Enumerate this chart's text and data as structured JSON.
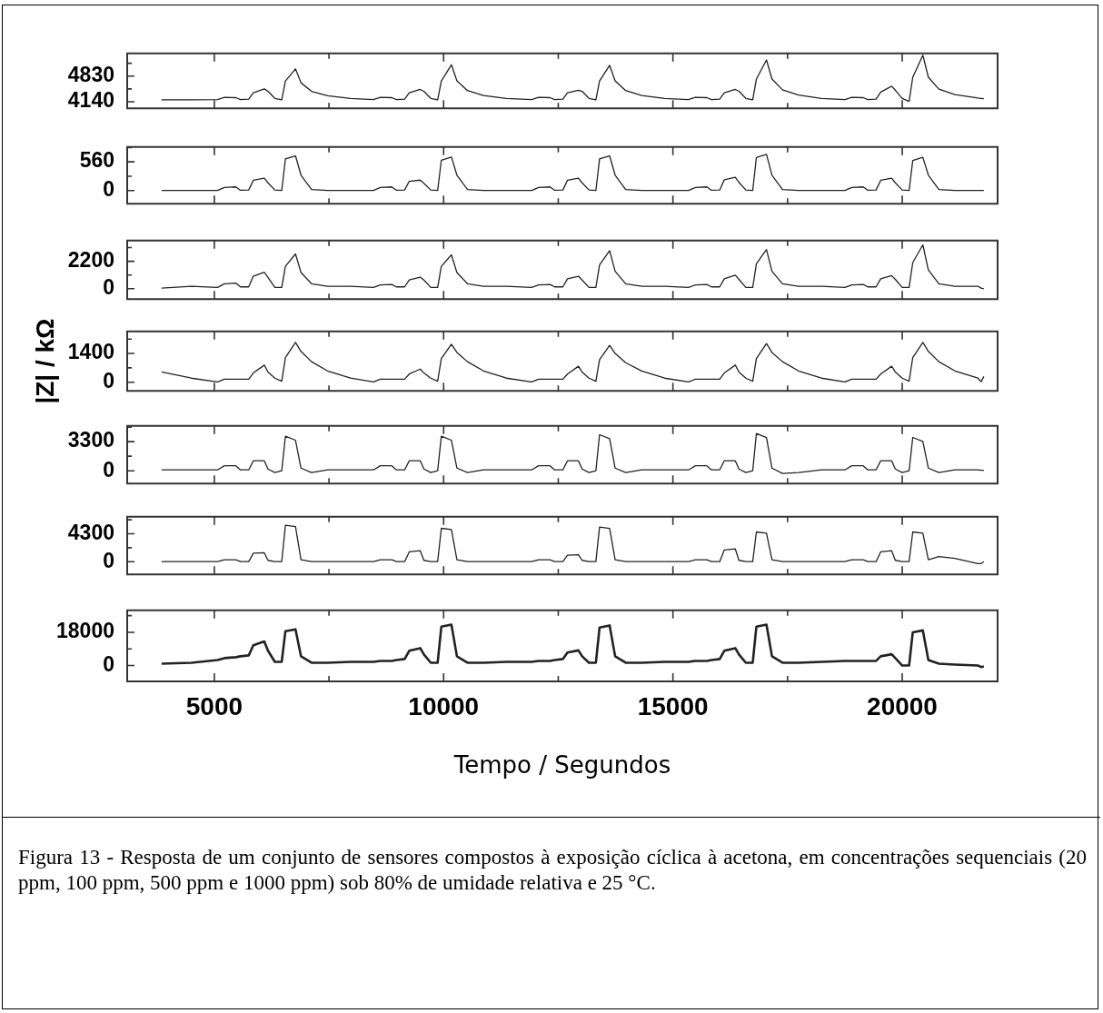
{
  "chart_data": [
    {
      "type": "line",
      "x": [
        3850,
        4500,
        5070,
        5220,
        5470,
        5570,
        5750,
        5850,
        6090,
        6170,
        6320,
        6470,
        6550,
        6770,
        6890,
        7120,
        7470,
        7970,
        8470,
        8620,
        8870,
        8970,
        9150,
        9250,
        9490,
        9570,
        9720,
        9870,
        9950,
        10170,
        10290,
        10520,
        10870,
        11370,
        11920,
        12070,
        12320,
        12420,
        12600,
        12700,
        12940,
        13020,
        13170,
        13320,
        13400,
        13620,
        13740,
        13970,
        14320,
        14820,
        15340,
        15490,
        15740,
        15840,
        16020,
        16120,
        16360,
        16440,
        16590,
        16740,
        16820,
        17040,
        17160,
        17390,
        17740,
        18240,
        18750,
        18900,
        19150,
        19250,
        19430,
        19530,
        19770,
        19850,
        20000,
        20150,
        20230,
        20450,
        20570,
        20800,
        21150,
        21650,
        21720,
        21780
      ],
      "xlim": [
        3100,
        22080
      ],
      "xticks": [
        5000,
        {
          "value": 7500,
          "label": null
        },
        10000,
        {
          "value": 12500,
          "label": null
        },
        15000,
        {
          "value": 17500,
          "label": null
        },
        20000
      ],
      "ylim": [
        3964,
        5440
      ],
      "yticks": [
        4140,
        {
          "value": 4485,
          "label": null
        },
        4830,
        {
          "value": 5175,
          "label": null
        }
      ],
      "tick_labels": "y",
      "series": [
        {
          "color": "#222222",
          "values": [
            4190,
            4190,
            4200,
            4260,
            4250,
            4200,
            4210,
            4380,
            4485,
            4420,
            4230,
            4190,
            4700,
            5023,
            4650,
            4420,
            4300,
            4230,
            4200,
            4260,
            4250,
            4200,
            4210,
            4380,
            4470,
            4420,
            4230,
            4190,
            4700,
            5135,
            4700,
            4440,
            4310,
            4230,
            4200,
            4260,
            4250,
            4200,
            4210,
            4380,
            4450,
            4420,
            4230,
            4190,
            4700,
            5119,
            4700,
            4440,
            4310,
            4230,
            4200,
            4260,
            4250,
            4200,
            4210,
            4380,
            4470,
            4420,
            4230,
            4190,
            4750,
            5263,
            4750,
            4460,
            4320,
            4230,
            4200,
            4260,
            4250,
            4200,
            4210,
            4400,
            4557,
            4450,
            4230,
            4150,
            4800,
            5392,
            4800,
            4480,
            4330,
            4240,
            4230,
            4220
          ]
        }
      ]
    },
    {
      "type": "line",
      "x": [
        3850,
        4500,
        5070,
        5220,
        5470,
        5570,
        5750,
        5850,
        6090,
        6170,
        6320,
        6470,
        6550,
        6770,
        6890,
        7120,
        7470,
        7970,
        8470,
        8620,
        8870,
        8970,
        9150,
        9250,
        9490,
        9570,
        9720,
        9870,
        9950,
        10170,
        10290,
        10520,
        10870,
        11370,
        11920,
        12070,
        12320,
        12420,
        12600,
        12700,
        12940,
        13020,
        13170,
        13320,
        13400,
        13620,
        13740,
        13970,
        14320,
        14820,
        15340,
        15490,
        15740,
        15840,
        16020,
        16120,
        16360,
        16440,
        16590,
        16740,
        16820,
        17040,
        17160,
        17390,
        17740,
        18240,
        18750,
        18900,
        19150,
        19250,
        19430,
        19530,
        19770,
        19850,
        20000,
        20150,
        20230,
        20450,
        20570,
        20800,
        21150,
        21650,
        21720,
        21780
      ],
      "xlim": [
        3100,
        22080
      ],
      "xticks": [
        5000,
        {
          "value": 7500,
          "label": null
        },
        10000,
        {
          "value": 12500,
          "label": null
        },
        15000,
        {
          "value": 17500,
          "label": null
        },
        20000
      ],
      "ylim": [
        -257,
        850
      ],
      "yticks": [
        0,
        {
          "value": 280,
          "label": null
        },
        560,
        {
          "value": 840,
          "label": null
        }
      ],
      "tick_labels": "y",
      "series": [
        {
          "color": "#222222",
          "values": [
            0,
            0,
            0,
            60,
            70,
            5,
            10,
            200,
            240,
            150,
            10,
            0,
            617,
            677,
            300,
            20,
            0,
            0,
            0,
            60,
            70,
            5,
            10,
            180,
            203,
            140,
            10,
            0,
            593,
            653,
            300,
            20,
            0,
            0,
            0,
            60,
            70,
            5,
            10,
            200,
            240,
            150,
            10,
            0,
            617,
            677,
            300,
            20,
            0,
            0,
            0,
            60,
            70,
            5,
            10,
            210,
            257,
            160,
            10,
            0,
            646,
            706,
            300,
            20,
            0,
            0,
            0,
            60,
            70,
            5,
            10,
            200,
            240,
            150,
            10,
            0,
            588,
            648,
            300,
            20,
            0,
            0,
            0,
            0
          ]
        }
      ]
    },
    {
      "type": "line",
      "x": [
        3850,
        4500,
        5070,
        5220,
        5470,
        5570,
        5750,
        5850,
        6090,
        6170,
        6320,
        6470,
        6550,
        6770,
        6890,
        7120,
        7470,
        7970,
        8470,
        8620,
        8870,
        8970,
        9150,
        9250,
        9490,
        9570,
        9720,
        9870,
        9950,
        10170,
        10290,
        10520,
        10870,
        11370,
        11920,
        12070,
        12320,
        12420,
        12600,
        12700,
        12940,
        13020,
        13170,
        13320,
        13400,
        13620,
        13740,
        13970,
        14320,
        14820,
        15340,
        15490,
        15740,
        15840,
        16020,
        16120,
        16360,
        16440,
        16590,
        16740,
        16820,
        17040,
        17160,
        17390,
        17740,
        18240,
        18750,
        18900,
        19150,
        19250,
        19430,
        19530,
        19770,
        19850,
        20000,
        20150,
        20230,
        20450,
        20570,
        20800,
        21150,
        21650,
        21720,
        21780
      ],
      "xlim": [
        3100,
        22080
      ],
      "xticks": [
        5000,
        {
          "value": 7500,
          "label": null
        },
        10000,
        {
          "value": 12500,
          "label": null
        },
        15000,
        {
          "value": 17500,
          "label": null
        },
        20000
      ],
      "ylim": [
        -831,
        3862
      ],
      "yticks": [
        0,
        {
          "value": 1100,
          "label": null
        },
        2200,
        {
          "value": 3300,
          "label": null
        }
      ],
      "tick_labels": "y",
      "series": [
        {
          "color": "#222222",
          "values": [
            50,
            200,
            100,
            400,
            450,
            150,
            150,
            1000,
            1320,
            900,
            100,
            100,
            1800,
            2790,
            1300,
            400,
            200,
            200,
            100,
            300,
            340,
            150,
            150,
            700,
            930,
            700,
            100,
            100,
            1800,
            2714,
            1300,
            400,
            200,
            200,
            100,
            300,
            340,
            150,
            150,
            800,
            1000,
            700,
            100,
            100,
            1900,
            3050,
            1400,
            400,
            200,
            200,
            100,
            300,
            340,
            150,
            150,
            800,
            1090,
            750,
            100,
            100,
            2000,
            3140,
            1400,
            400,
            200,
            200,
            100,
            300,
            340,
            150,
            150,
            800,
            1050,
            750,
            100,
            100,
            2100,
            3520,
            1500,
            400,
            200,
            200,
            50,
            0
          ]
        }
      ]
    },
    {
      "type": "line",
      "ylabel": "|Z| / kΩ",
      "x": [
        3850,
        4500,
        5070,
        5220,
        5470,
        5570,
        5750,
        5850,
        6090,
        6170,
        6320,
        6470,
        6550,
        6770,
        6890,
        7120,
        7470,
        7970,
        8470,
        8620,
        8870,
        8970,
        9150,
        9250,
        9490,
        9570,
        9720,
        9870,
        9950,
        10170,
        10290,
        10520,
        10870,
        11370,
        11920,
        12070,
        12320,
        12420,
        12600,
        12700,
        12940,
        13020,
        13170,
        13320,
        13400,
        13620,
        13740,
        13970,
        14320,
        14820,
        15340,
        15490,
        15740,
        15840,
        16020,
        16120,
        16360,
        16440,
        16590,
        16740,
        16820,
        17040,
        17160,
        17390,
        17740,
        18240,
        18750,
        18900,
        19150,
        19250,
        19430,
        19530,
        19770,
        19850,
        20000,
        20150,
        20230,
        20450,
        20570,
        20800,
        21150,
        21650,
        21720,
        21780
      ],
      "xlim": [
        3100,
        22080
      ],
      "xticks": [
        5000,
        {
          "value": 7500,
          "label": null
        },
        10000,
        {
          "value": 12500,
          "label": null
        },
        15000,
        {
          "value": 17500,
          "label": null
        },
        20000
      ],
      "ylim": [
        -417,
        2472
      ],
      "yticks": [
        0,
        {
          "value": 700,
          "label": null
        },
        1400,
        {
          "value": 2100,
          "label": null
        }
      ],
      "tick_labels": "y",
      "series": [
        {
          "color": "#222222",
          "values": [
            506,
            200,
            20,
            150,
            150,
            150,
            150,
            450,
            834,
            500,
            200,
            50,
            1200,
            1937,
            1500,
            1000,
            550,
            200,
            20,
            150,
            150,
            150,
            150,
            400,
            640,
            450,
            200,
            50,
            1150,
            1848,
            1450,
            1000,
            550,
            200,
            20,
            150,
            150,
            150,
            150,
            400,
            780,
            500,
            200,
            50,
            1100,
            1790,
            1400,
            950,
            550,
            200,
            20,
            150,
            150,
            150,
            150,
            450,
            834,
            500,
            200,
            50,
            1150,
            1880,
            1450,
            1000,
            550,
            200,
            20,
            150,
            150,
            150,
            150,
            400,
            780,
            500,
            200,
            50,
            1200,
            1937,
            1500,
            1000,
            550,
            200,
            30,
            280
          ]
        }
      ]
    },
    {
      "type": "line",
      "x": [
        3850,
        4500,
        5070,
        5220,
        5470,
        5570,
        5750,
        5850,
        6090,
        6170,
        6320,
        6470,
        6550,
        6770,
        6890,
        7120,
        7470,
        7970,
        8470,
        8620,
        8870,
        8970,
        9150,
        9250,
        9490,
        9570,
        9720,
        9870,
        9950,
        10170,
        10290,
        10520,
        10870,
        11370,
        11920,
        12070,
        12320,
        12420,
        12600,
        12700,
        12940,
        13020,
        13170,
        13320,
        13400,
        13620,
        13740,
        13970,
        14320,
        14820,
        15340,
        15490,
        15740,
        15840,
        16020,
        16120,
        16360,
        16440,
        16590,
        16740,
        16820,
        17040,
        17160,
        17390,
        17740,
        18240,
        18750,
        18900,
        19150,
        19250,
        19430,
        19530,
        19770,
        19850,
        20000,
        20150,
        20230,
        20450,
        20570,
        20800,
        21150,
        21650,
        21720,
        21780
      ],
      "xlim": [
        3100,
        22080
      ],
      "xticks": [
        5000,
        {
          "value": 7500,
          "label": null
        },
        10000,
        {
          "value": 12500,
          "label": null
        },
        15000,
        {
          "value": 17500,
          "label": null
        },
        20000
      ],
      "ylim": [
        -1444,
        5088
      ],
      "yticks": [
        0,
        {
          "value": 1650,
          "label": null
        },
        3300,
        {
          "value": 4950,
          "label": null
        }
      ],
      "tick_labels": "y",
      "series": [
        {
          "color": "#222222",
          "values": [
            100,
            100,
            100,
            570,
            570,
            100,
            100,
            1130,
            1130,
            200,
            -200,
            0,
            3920,
            3470,
            300,
            -200,
            100,
            100,
            100,
            570,
            570,
            100,
            100,
            1130,
            1130,
            200,
            -200,
            0,
            3920,
            3470,
            300,
            -200,
            100,
            100,
            100,
            570,
            570,
            100,
            100,
            1130,
            1130,
            200,
            -200,
            0,
            4090,
            3640,
            300,
            -200,
            100,
            100,
            100,
            570,
            570,
            100,
            100,
            1130,
            1130,
            200,
            -200,
            0,
            4220,
            3770,
            300,
            -300,
            -200,
            100,
            100,
            570,
            570,
            100,
            100,
            1130,
            1130,
            200,
            -200,
            0,
            3780,
            3330,
            300,
            -200,
            100,
            100,
            50,
            50
          ]
        }
      ]
    },
    {
      "type": "line",
      "x": [
        3850,
        4500,
        5070,
        5220,
        5470,
        5570,
        5750,
        5850,
        6090,
        6170,
        6320,
        6470,
        6550,
        6770,
        6890,
        7120,
        7470,
        7970,
        8470,
        8620,
        8870,
        8970,
        9150,
        9250,
        9490,
        9570,
        9720,
        9870,
        9950,
        10170,
        10290,
        10520,
        10870,
        11370,
        11920,
        12070,
        12320,
        12420,
        12600,
        12700,
        12940,
        13020,
        13170,
        13320,
        13400,
        13620,
        13740,
        13970,
        14320,
        14820,
        15340,
        15490,
        15740,
        15840,
        16020,
        16120,
        16360,
        16440,
        16590,
        16740,
        16820,
        17040,
        17160,
        17390,
        17740,
        18240,
        18750,
        18900,
        19150,
        19250,
        19430,
        19530,
        19770,
        19850,
        20000,
        20150,
        20230,
        20450,
        20570,
        20800,
        21150,
        21650,
        21720,
        21780
      ],
      "xlim": [
        3100,
        22080
      ],
      "xticks": [
        5000,
        {
          "value": 7500,
          "label": null
        },
        10000,
        {
          "value": 12500,
          "label": null
        },
        15000,
        {
          "value": 17500,
          "label": null
        },
        20000
      ],
      "ylim": [
        -1963,
        6917
      ],
      "yticks": [
        0,
        {
          "value": 2150,
          "label": null
        },
        4300,
        {
          "value": 6450,
          "label": null
        }
      ],
      "tick_labels": "y",
      "series": [
        {
          "color": "#222222",
          "values": [
            0,
            0,
            0,
            280,
            280,
            0,
            0,
            1300,
            1360,
            200,
            0,
            0,
            5610,
            5410,
            300,
            0,
            0,
            0,
            0,
            280,
            280,
            0,
            0,
            1500,
            1680,
            200,
            0,
            0,
            5140,
            4940,
            300,
            0,
            0,
            0,
            0,
            280,
            280,
            0,
            0,
            1000,
            1070,
            200,
            0,
            0,
            5330,
            5130,
            300,
            0,
            0,
            0,
            0,
            280,
            280,
            0,
            0,
            1800,
            1960,
            200,
            0,
            0,
            4580,
            4380,
            300,
            0,
            0,
            0,
            0,
            280,
            280,
            0,
            0,
            1500,
            1680,
            200,
            0,
            0,
            4580,
            4380,
            300,
            770,
            500,
            -300,
            -300,
            0
          ]
        }
      ]
    },
    {
      "type": "line",
      "xlabel": "Tempo / Segundos",
      "annotations": [
        "Figura 13 - Resposta de um conjunto de sensores compostos à exposição cíclica à acetona, em concentrações sequenciais (20 ppm, 100 ppm, 500 ppm e 1000 ppm) sob 80% de umidade relativa e 25 °C."
      ],
      "x": [
        3850,
        4500,
        5070,
        5220,
        5470,
        5570,
        5750,
        5850,
        6090,
        6170,
        6320,
        6470,
        6550,
        6770,
        6890,
        7120,
        7470,
        7970,
        8470,
        8620,
        8870,
        8970,
        9150,
        9250,
        9490,
        9570,
        9720,
        9870,
        9950,
        10170,
        10290,
        10520,
        10870,
        11370,
        11920,
        12070,
        12320,
        12420,
        12600,
        12700,
        12940,
        13020,
        13170,
        13320,
        13400,
        13620,
        13740,
        13970,
        14320,
        14820,
        15340,
        15490,
        15740,
        15840,
        16020,
        16120,
        16360,
        16440,
        16590,
        16740,
        16820,
        17040,
        17160,
        17390,
        17740,
        18240,
        18750,
        18900,
        19150,
        19250,
        19430,
        19530,
        19770,
        19850,
        20000,
        20150,
        20230,
        20450,
        20570,
        20800,
        21150,
        21650,
        21720,
        21780
      ],
      "xlim": [
        3100,
        22080
      ],
      "xticks": [
        5000,
        {
          "value": 7500,
          "label": null
        },
        10000,
        {
          "value": 12500,
          "label": null
        },
        15000,
        {
          "value": 17500,
          "label": null
        },
        20000
      ],
      "ylim": [
        -8591,
        29864
      ],
      "yticks": [
        0,
        {
          "value": 9000,
          "label": null
        },
        18000,
        {
          "value": 27000,
          "label": null
        }
      ],
      "series": [
        {
          "color": "#222222",
          "values": [
            1000,
            1500,
            3000,
            4000,
            4500,
            5000,
            5500,
            11000,
            13000,
            8000,
            2000,
            2000,
            18600,
            19600,
            5000,
            1500,
            1500,
            2000,
            2000,
            2500,
            2500,
            3000,
            3500,
            8000,
            9400,
            6000,
            1500,
            1500,
            21000,
            22100,
            5000,
            1500,
            1500,
            2000,
            2000,
            2500,
            2500,
            3000,
            3500,
            7000,
            8200,
            5000,
            1500,
            1500,
            20500,
            21700,
            5000,
            1500,
            1500,
            2000,
            2000,
            2500,
            2500,
            3000,
            3500,
            8000,
            9400,
            6000,
            1500,
            1500,
            21000,
            22100,
            5000,
            1500,
            1500,
            2000,
            2500,
            2500,
            2500,
            2500,
            2500,
            5000,
            6100,
            4000,
            0,
            0,
            18000,
            19000,
            3000,
            1000,
            500,
            0,
            -800,
            -500
          ]
        }
      ]
    }
  ]
}
